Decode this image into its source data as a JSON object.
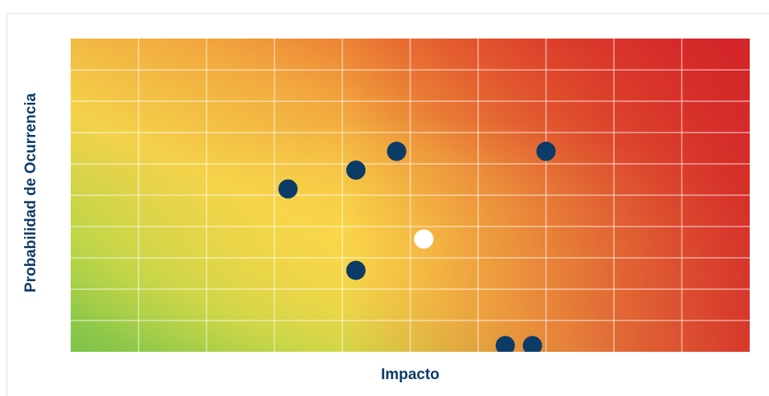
{
  "chart_data": {
    "type": "scatter",
    "title": "",
    "xlabel": "Impacto",
    "ylabel": "Probabilidad de Ocurrencia",
    "xlim": [
      0,
      10
    ],
    "ylim": [
      0,
      10
    ],
    "grid": true,
    "grid_divisions": {
      "x": 10,
      "y": 10
    },
    "background": "risk heatmap gradient: green (bottom-left) to yellow to orange to red (top-right)",
    "colors": {
      "point": "#0b3b66",
      "highlight_point": "#ffffff",
      "axis_label": "#0e3a68"
    },
    "series": [
      {
        "color": "#0b3b66",
        "points": [
          {
            "x": 4.8,
            "y": 6.4
          },
          {
            "x": 7.0,
            "y": 6.4
          },
          {
            "x": 4.2,
            "y": 5.8
          },
          {
            "x": 3.2,
            "y": 5.2
          },
          {
            "x": 4.2,
            "y": 2.6
          },
          {
            "x": 6.4,
            "y": 0.2
          },
          {
            "x": 6.8,
            "y": 0.2
          }
        ]
      },
      {
        "color": "#ffffff",
        "points": [
          {
            "x": 5.2,
            "y": 3.6
          }
        ]
      }
    ]
  }
}
